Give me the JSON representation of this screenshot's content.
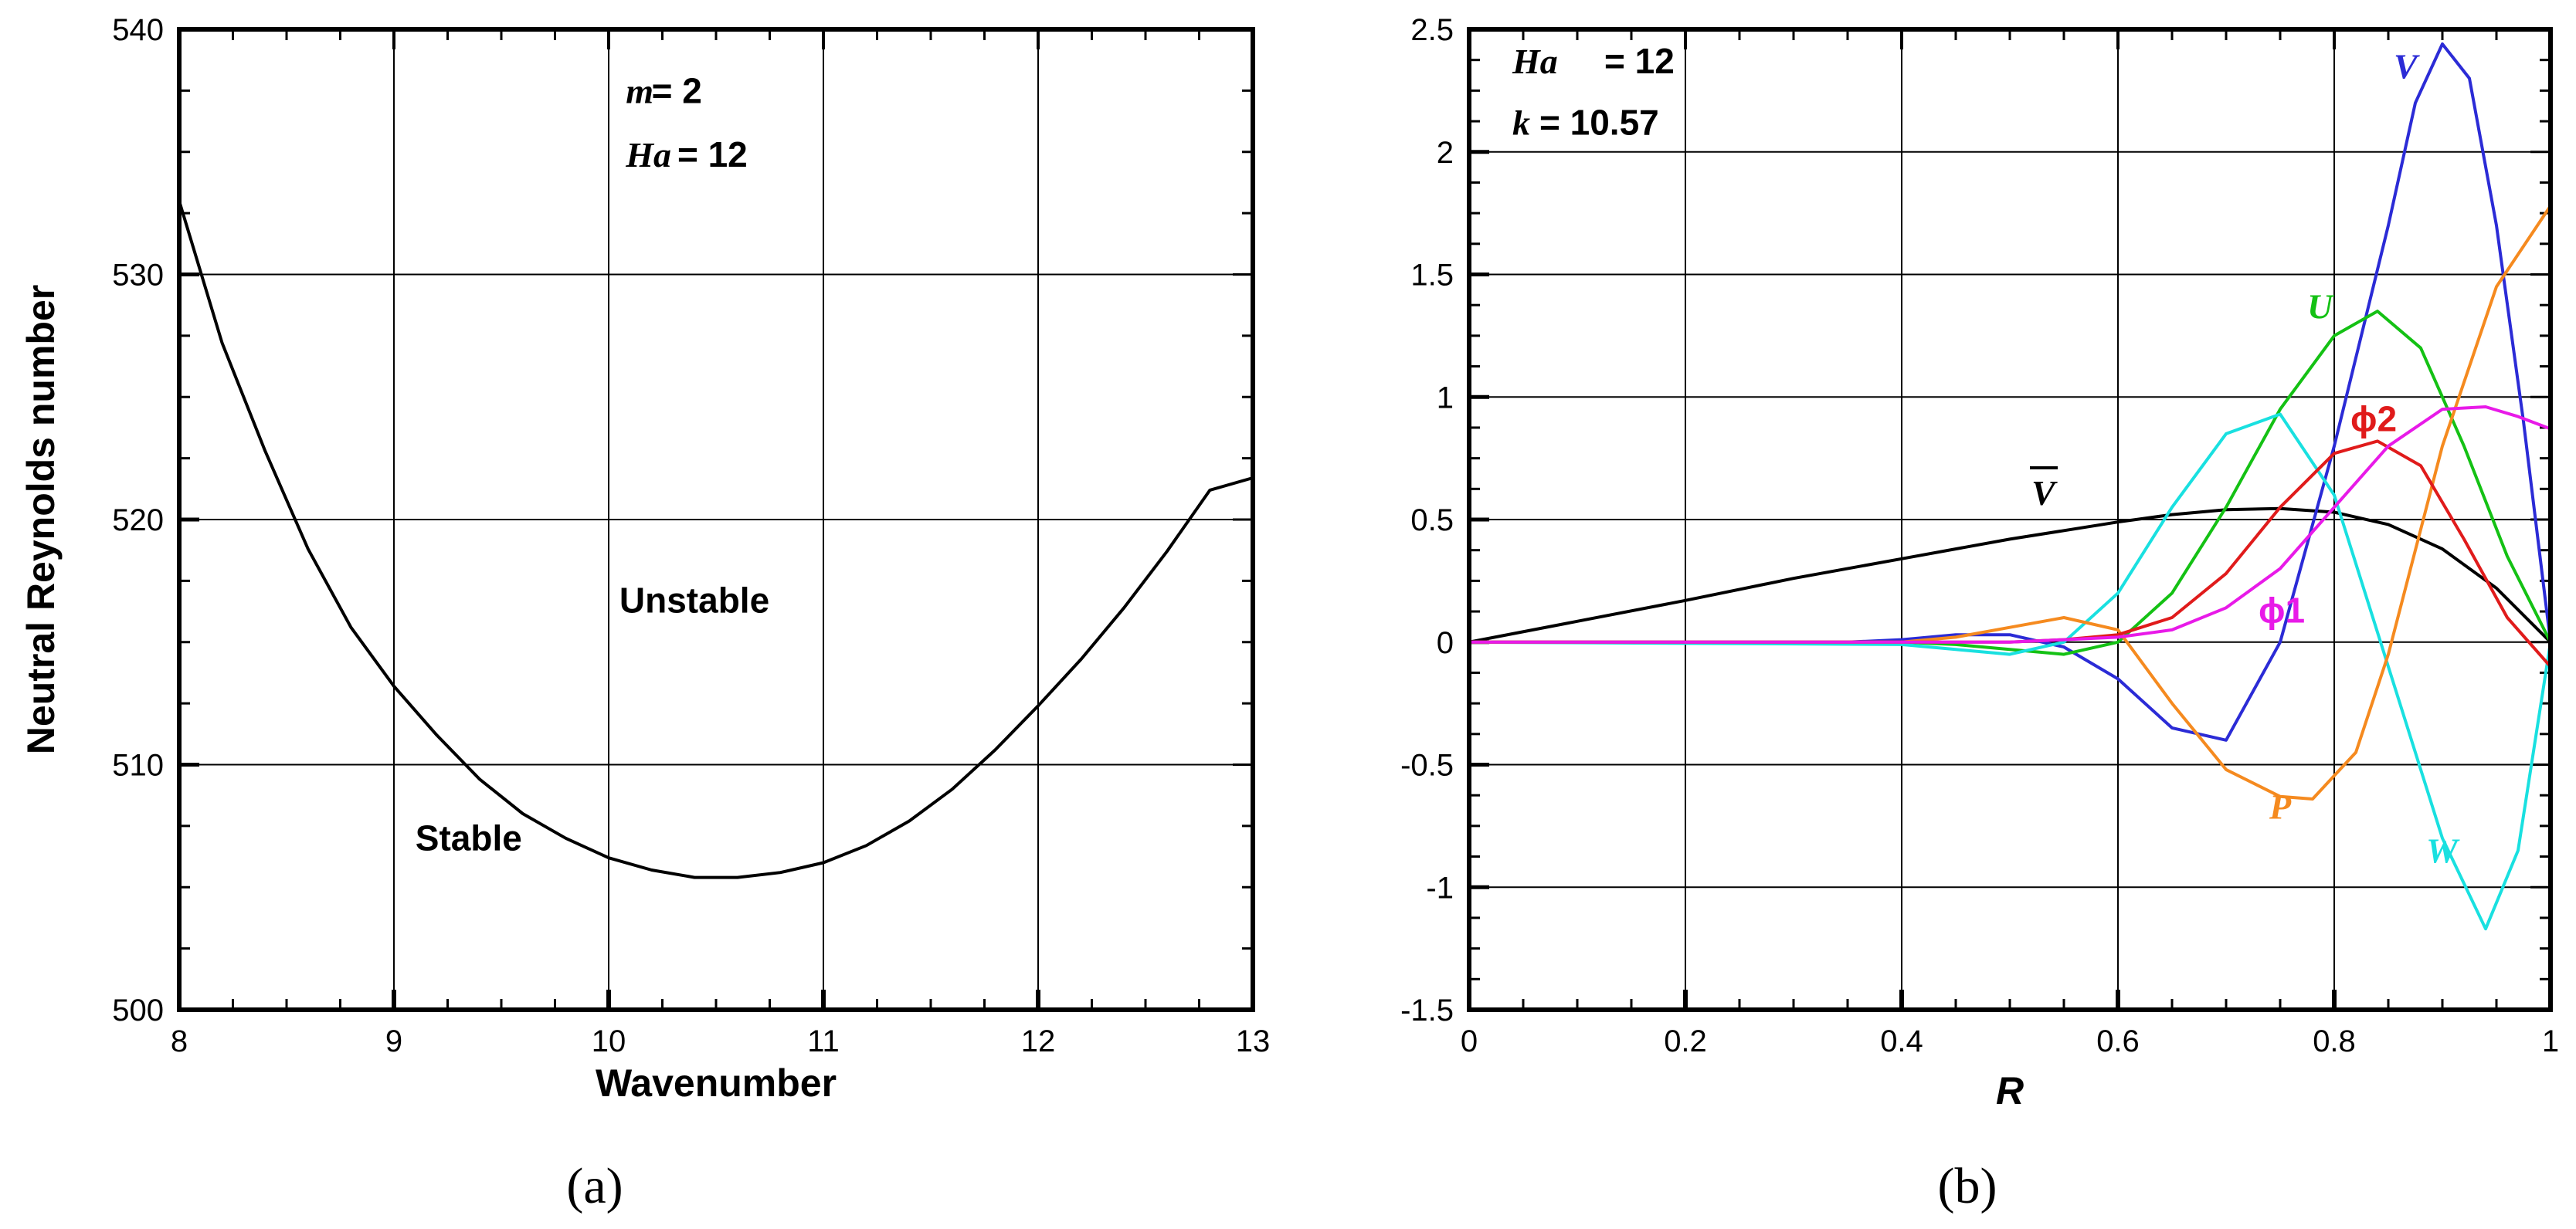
{
  "chart_data": [
    {
      "type": "line",
      "panel_label": "(a)",
      "xlabel": "Wavenumber",
      "ylabel": "Neutral Reynolds number",
      "xlim": [
        8,
        13
      ],
      "ylim": [
        500,
        540
      ],
      "xticks": [
        "8",
        "9",
        "10",
        "11",
        "12",
        "13"
      ],
      "yticks": [
        "500",
        "510",
        "520",
        "530",
        "540"
      ],
      "grid": true,
      "series": [
        {
          "color": "#000000",
          "x": [
            8.0,
            8.2,
            8.4,
            8.6,
            8.8,
            9.0,
            9.2,
            9.4,
            9.6,
            9.8,
            10.0,
            10.2,
            10.4,
            10.6,
            10.8,
            11.0,
            11.2,
            11.4,
            11.6,
            11.8,
            12.0,
            12.2,
            12.4,
            12.6,
            12.8,
            13.0
          ],
          "y": [
            533.0,
            527.2,
            522.8,
            518.8,
            515.6,
            513.2,
            511.2,
            509.4,
            508.0,
            507.0,
            506.2,
            505.7,
            505.4,
            505.4,
            505.6,
            506.0,
            506.7,
            507.7,
            509.0,
            510.6,
            512.4,
            514.3,
            516.4,
            518.7,
            521.2,
            521.7
          ]
        }
      ],
      "annotations": [
        {
          "text": "m",
          "x": 10.08,
          "y": 537.0,
          "style": "bold-italic"
        },
        {
          "text": " = 2",
          "x": 10.2,
          "y": 537.0,
          "style": "bold"
        },
        {
          "text": "Ha",
          "x": 10.08,
          "y": 534.4,
          "style": "bold-italic"
        },
        {
          "text": " = 12",
          "x": 10.32,
          "y": 534.4,
          "style": "bold"
        },
        {
          "text": "Unstable",
          "x": 10.05,
          "y": 516.2,
          "style": "bold"
        },
        {
          "text": "Stable",
          "x": 9.1,
          "y": 506.5,
          "style": "bold"
        }
      ]
    },
    {
      "type": "line",
      "panel_label": "(b)",
      "xlabel": "R",
      "ylabel": "",
      "xlim": [
        0,
        1
      ],
      "ylim": [
        -1.5,
        2.5
      ],
      "xticks": [
        "0",
        "0.2",
        "0.4",
        "0.6",
        "0.8",
        "1"
      ],
      "yticks": [
        "-1.5",
        "-1",
        "-0.5",
        "0",
        "0.5",
        "1",
        "1.5",
        "2",
        "2.5"
      ],
      "grid": true,
      "series": [
        {
          "name": "V̄",
          "color": "#000000",
          "x": [
            0,
            0.1,
            0.2,
            0.3,
            0.4,
            0.5,
            0.6,
            0.65,
            0.7,
            0.75,
            0.8,
            0.85,
            0.9,
            0.95,
            1.0
          ],
          "y": [
            0.0,
            0.085,
            0.17,
            0.26,
            0.34,
            0.42,
            0.49,
            0.52,
            0.54,
            0.545,
            0.53,
            0.48,
            0.38,
            0.22,
            0.0
          ]
        },
        {
          "name": "V",
          "color": "#2b2bd6",
          "x": [
            0,
            0.35,
            0.4,
            0.45,
            0.5,
            0.55,
            0.6,
            0.65,
            0.7,
            0.75,
            0.8,
            0.85,
            0.875,
            0.9,
            0.925,
            0.95,
            0.975,
            1.0
          ],
          "y": [
            0,
            0.0,
            0.01,
            0.03,
            0.03,
            -0.02,
            -0.15,
            -0.35,
            -0.4,
            0.0,
            0.8,
            1.7,
            2.2,
            2.44,
            2.3,
            1.7,
            0.9,
            0.0
          ]
        },
        {
          "name": "U",
          "color": "#14c114",
          "x": [
            0,
            0.4,
            0.45,
            0.5,
            0.55,
            0.6,
            0.65,
            0.7,
            0.75,
            0.8,
            0.84,
            0.88,
            0.92,
            0.96,
            1.0
          ],
          "y": [
            0,
            0.0,
            -0.01,
            -0.03,
            -0.05,
            0.0,
            0.2,
            0.55,
            0.95,
            1.25,
            1.35,
            1.2,
            0.8,
            0.35,
            0.0
          ]
        },
        {
          "name": "W",
          "color": "#19e0e0",
          "x": [
            0,
            0.4,
            0.45,
            0.5,
            0.55,
            0.6,
            0.65,
            0.7,
            0.75,
            0.8,
            0.85,
            0.9,
            0.94,
            0.97,
            1.0
          ],
          "y": [
            0,
            -0.01,
            -0.03,
            -0.05,
            0.0,
            0.2,
            0.55,
            0.85,
            0.93,
            0.6,
            -0.1,
            -0.8,
            -1.17,
            -0.85,
            0.0
          ]
        },
        {
          "name": "P",
          "color": "#f58a1f",
          "x": [
            0,
            0.4,
            0.45,
            0.5,
            0.55,
            0.6,
            0.65,
            0.7,
            0.75,
            0.78,
            0.82,
            0.85,
            0.9,
            0.95,
            1.0
          ],
          "y": [
            0,
            0.0,
            0.02,
            0.06,
            0.1,
            0.05,
            -0.25,
            -0.52,
            -0.63,
            -0.64,
            -0.45,
            -0.05,
            0.8,
            1.45,
            1.78
          ]
        },
        {
          "name": "ϕ2",
          "color": "#e01b1b",
          "x": [
            0,
            0.5,
            0.55,
            0.6,
            0.65,
            0.7,
            0.75,
            0.8,
            0.84,
            0.88,
            0.92,
            0.96,
            1.0
          ],
          "y": [
            0,
            0.0,
            0.01,
            0.03,
            0.1,
            0.28,
            0.55,
            0.77,
            0.82,
            0.72,
            0.42,
            0.1,
            -0.1
          ]
        },
        {
          "name": "ϕ1",
          "color": "#e81ae8",
          "x": [
            0,
            0.5,
            0.55,
            0.6,
            0.65,
            0.7,
            0.75,
            0.8,
            0.85,
            0.9,
            0.94,
            0.97,
            1.0
          ],
          "y": [
            0,
            0.0,
            0.01,
            0.02,
            0.05,
            0.14,
            0.3,
            0.55,
            0.8,
            0.95,
            0.96,
            0.92,
            0.87
          ]
        }
      ],
      "annotations": [
        {
          "text": "Ha",
          "x": 0.04,
          "y": 2.32,
          "style": "bold-italic"
        },
        {
          "text": " = 12",
          "x": 0.125,
          "y": 2.32,
          "style": "bold"
        },
        {
          "text": "k",
          "x": 0.04,
          "y": 2.07,
          "style": "bold-italic"
        },
        {
          "text": " = 10.57",
          "x": 0.065,
          "y": 2.07,
          "style": "bold"
        },
        {
          "text": "V",
          "x": 0.855,
          "y": 2.3,
          "style": "bold-italic",
          "color": "#2b2bd6"
        },
        {
          "text": "U",
          "x": 0.775,
          "y": 1.32,
          "style": "bold-italic",
          "color": "#14c114"
        },
        {
          "text": "ϕ2",
          "x": 0.815,
          "y": 0.86,
          "style": "regular",
          "color": "#e01b1b"
        },
        {
          "text": "V",
          "x": 0.52,
          "y": 0.56,
          "style": "bold-italic-overline",
          "color": "#000000"
        },
        {
          "text": "ϕ1",
          "x": 0.73,
          "y": 0.08,
          "style": "regular",
          "color": "#e81ae8"
        },
        {
          "text": "P",
          "x": 0.74,
          "y": -0.72,
          "style": "bold-italic",
          "color": "#f58a1f"
        },
        {
          "text": "W",
          "x": 0.885,
          "y": -0.9,
          "style": "bold-italic",
          "color": "#19e0e0"
        }
      ]
    }
  ]
}
